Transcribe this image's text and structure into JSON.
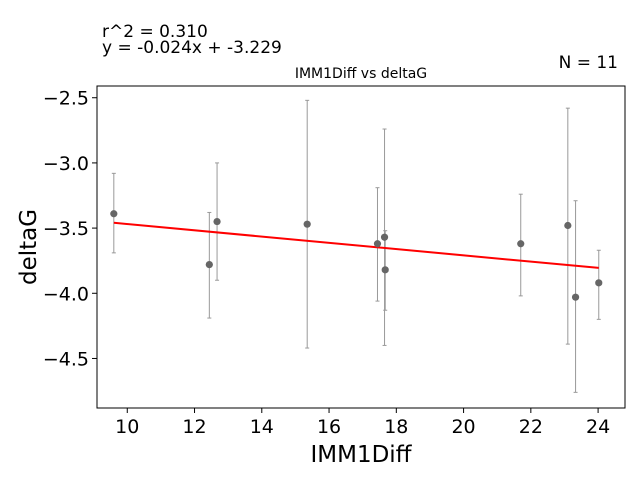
{
  "chart_data": {
    "type": "scatter",
    "title": "IMM1Diff vs deltaG",
    "xlabel": "IMM1Diff",
    "ylabel": "deltaG",
    "xlim": [
      9.1,
      24.8
    ],
    "ylim": [
      -4.88,
      -2.41
    ],
    "x_ticks": [
      10,
      12,
      14,
      16,
      18,
      20,
      22,
      24
    ],
    "y_ticks": [
      -2.5,
      -3.0,
      -3.5,
      -4.0,
      -4.5
    ],
    "x_tick_labels": [
      "10",
      "12",
      "14",
      "16",
      "18",
      "20",
      "22",
      "24"
    ],
    "y_tick_labels": [
      "−2.5",
      "−3.0",
      "−3.5",
      "−4.0",
      "−4.5"
    ],
    "grid": false,
    "annotations": {
      "r2": "r^2 = 0.310",
      "equation": "y = -0.024x + -3.229",
      "n": "N = 11"
    },
    "points": [
      {
        "x": 9.6,
        "y": -3.39,
        "err_low": -3.69,
        "err_high": -3.08
      },
      {
        "x": 12.44,
        "y": -3.78,
        "err_low": -4.19,
        "err_high": -3.38
      },
      {
        "x": 12.67,
        "y": -3.45,
        "err_low": -3.9,
        "err_high": -3.0
      },
      {
        "x": 15.35,
        "y": -3.47,
        "err_low": -4.42,
        "err_high": -2.52
      },
      {
        "x": 17.44,
        "y": -3.62,
        "err_low": -4.06,
        "err_high": -3.19
      },
      {
        "x": 17.65,
        "y": -3.57,
        "err_low": -4.4,
        "err_high": -2.74
      },
      {
        "x": 17.67,
        "y": -3.82,
        "err_low": -4.13,
        "err_high": -3.52
      },
      {
        "x": 21.7,
        "y": -3.62,
        "err_low": -4.02,
        "err_high": -3.24
      },
      {
        "x": 23.1,
        "y": -3.48,
        "err_low": -4.39,
        "err_high": -2.58
      },
      {
        "x": 23.33,
        "y": -4.03,
        "err_low": -4.76,
        "err_high": -3.29
      },
      {
        "x": 24.02,
        "y": -3.92,
        "err_low": -4.2,
        "err_high": -3.67
      }
    ],
    "trendline": {
      "slope": -0.024,
      "intercept": -3.229,
      "x_start": 9.6,
      "x_end": 24.02
    },
    "colors": {
      "points": "#666666",
      "error_bars": "#999999",
      "trendline": "#ff0000",
      "axes": "#000000"
    }
  }
}
